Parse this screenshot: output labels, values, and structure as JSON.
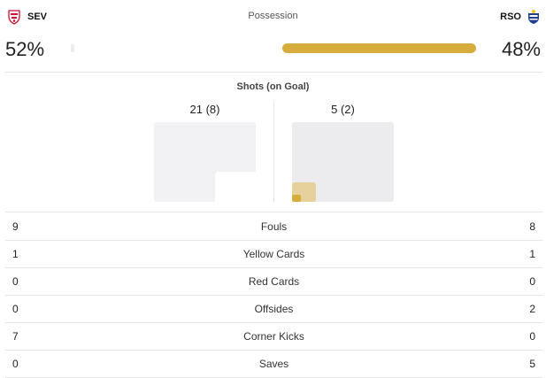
{
  "teams": {
    "home": {
      "abbr": "SEV",
      "possession": "52%"
    },
    "away": {
      "abbr": "RSO",
      "possession": "48%"
    }
  },
  "possession": {
    "label": "Possession",
    "home_fraction": 0.52,
    "away_fraction": 0.48
  },
  "shots": {
    "title": "Shots (on Goal)",
    "home": "21 (8)",
    "away": "5 (2)"
  },
  "colors": {
    "accent": "#d6ad3d",
    "divider": "#e6e6e6",
    "goal_bg": "#f2f2f4"
  },
  "stats": [
    {
      "name": "Fouls",
      "home": "9",
      "away": "8"
    },
    {
      "name": "Yellow Cards",
      "home": "1",
      "away": "1"
    },
    {
      "name": "Red Cards",
      "home": "0",
      "away": "0"
    },
    {
      "name": "Offsides",
      "home": "0",
      "away": "2"
    },
    {
      "name": "Corner Kicks",
      "home": "7",
      "away": "0"
    },
    {
      "name": "Saves",
      "home": "0",
      "away": "5"
    }
  ]
}
